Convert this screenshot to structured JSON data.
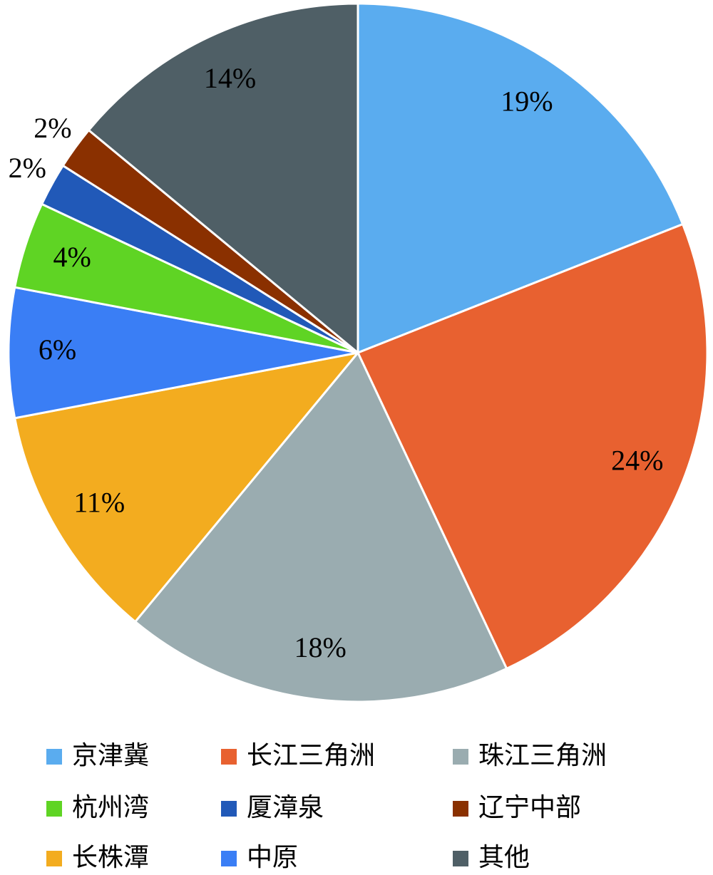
{
  "chart_data": {
    "type": "pie",
    "categories": [
      "京津冀",
      "长江三角洲",
      "珠江三角洲",
      "长株潭",
      "中原",
      "杭州湾",
      "厦漳泉",
      "辽宁中部",
      "其他"
    ],
    "values": [
      19,
      24,
      18,
      11,
      6,
      4,
      2,
      2,
      14
    ],
    "value_labels": [
      "19%",
      "24%",
      "18%",
      "11%",
      "6%",
      "4%",
      "2%",
      "2%",
      "14%"
    ],
    "colors": [
      "#5aacef",
      "#e86130",
      "#9aacb0",
      "#f3ac1f",
      "#3a7ef5",
      "#5fd424",
      "#2159b8",
      "#8a3000",
      "#4f5f66"
    ],
    "legend_order": [
      0,
      1,
      2,
      5,
      6,
      7,
      3,
      4,
      8
    ]
  }
}
